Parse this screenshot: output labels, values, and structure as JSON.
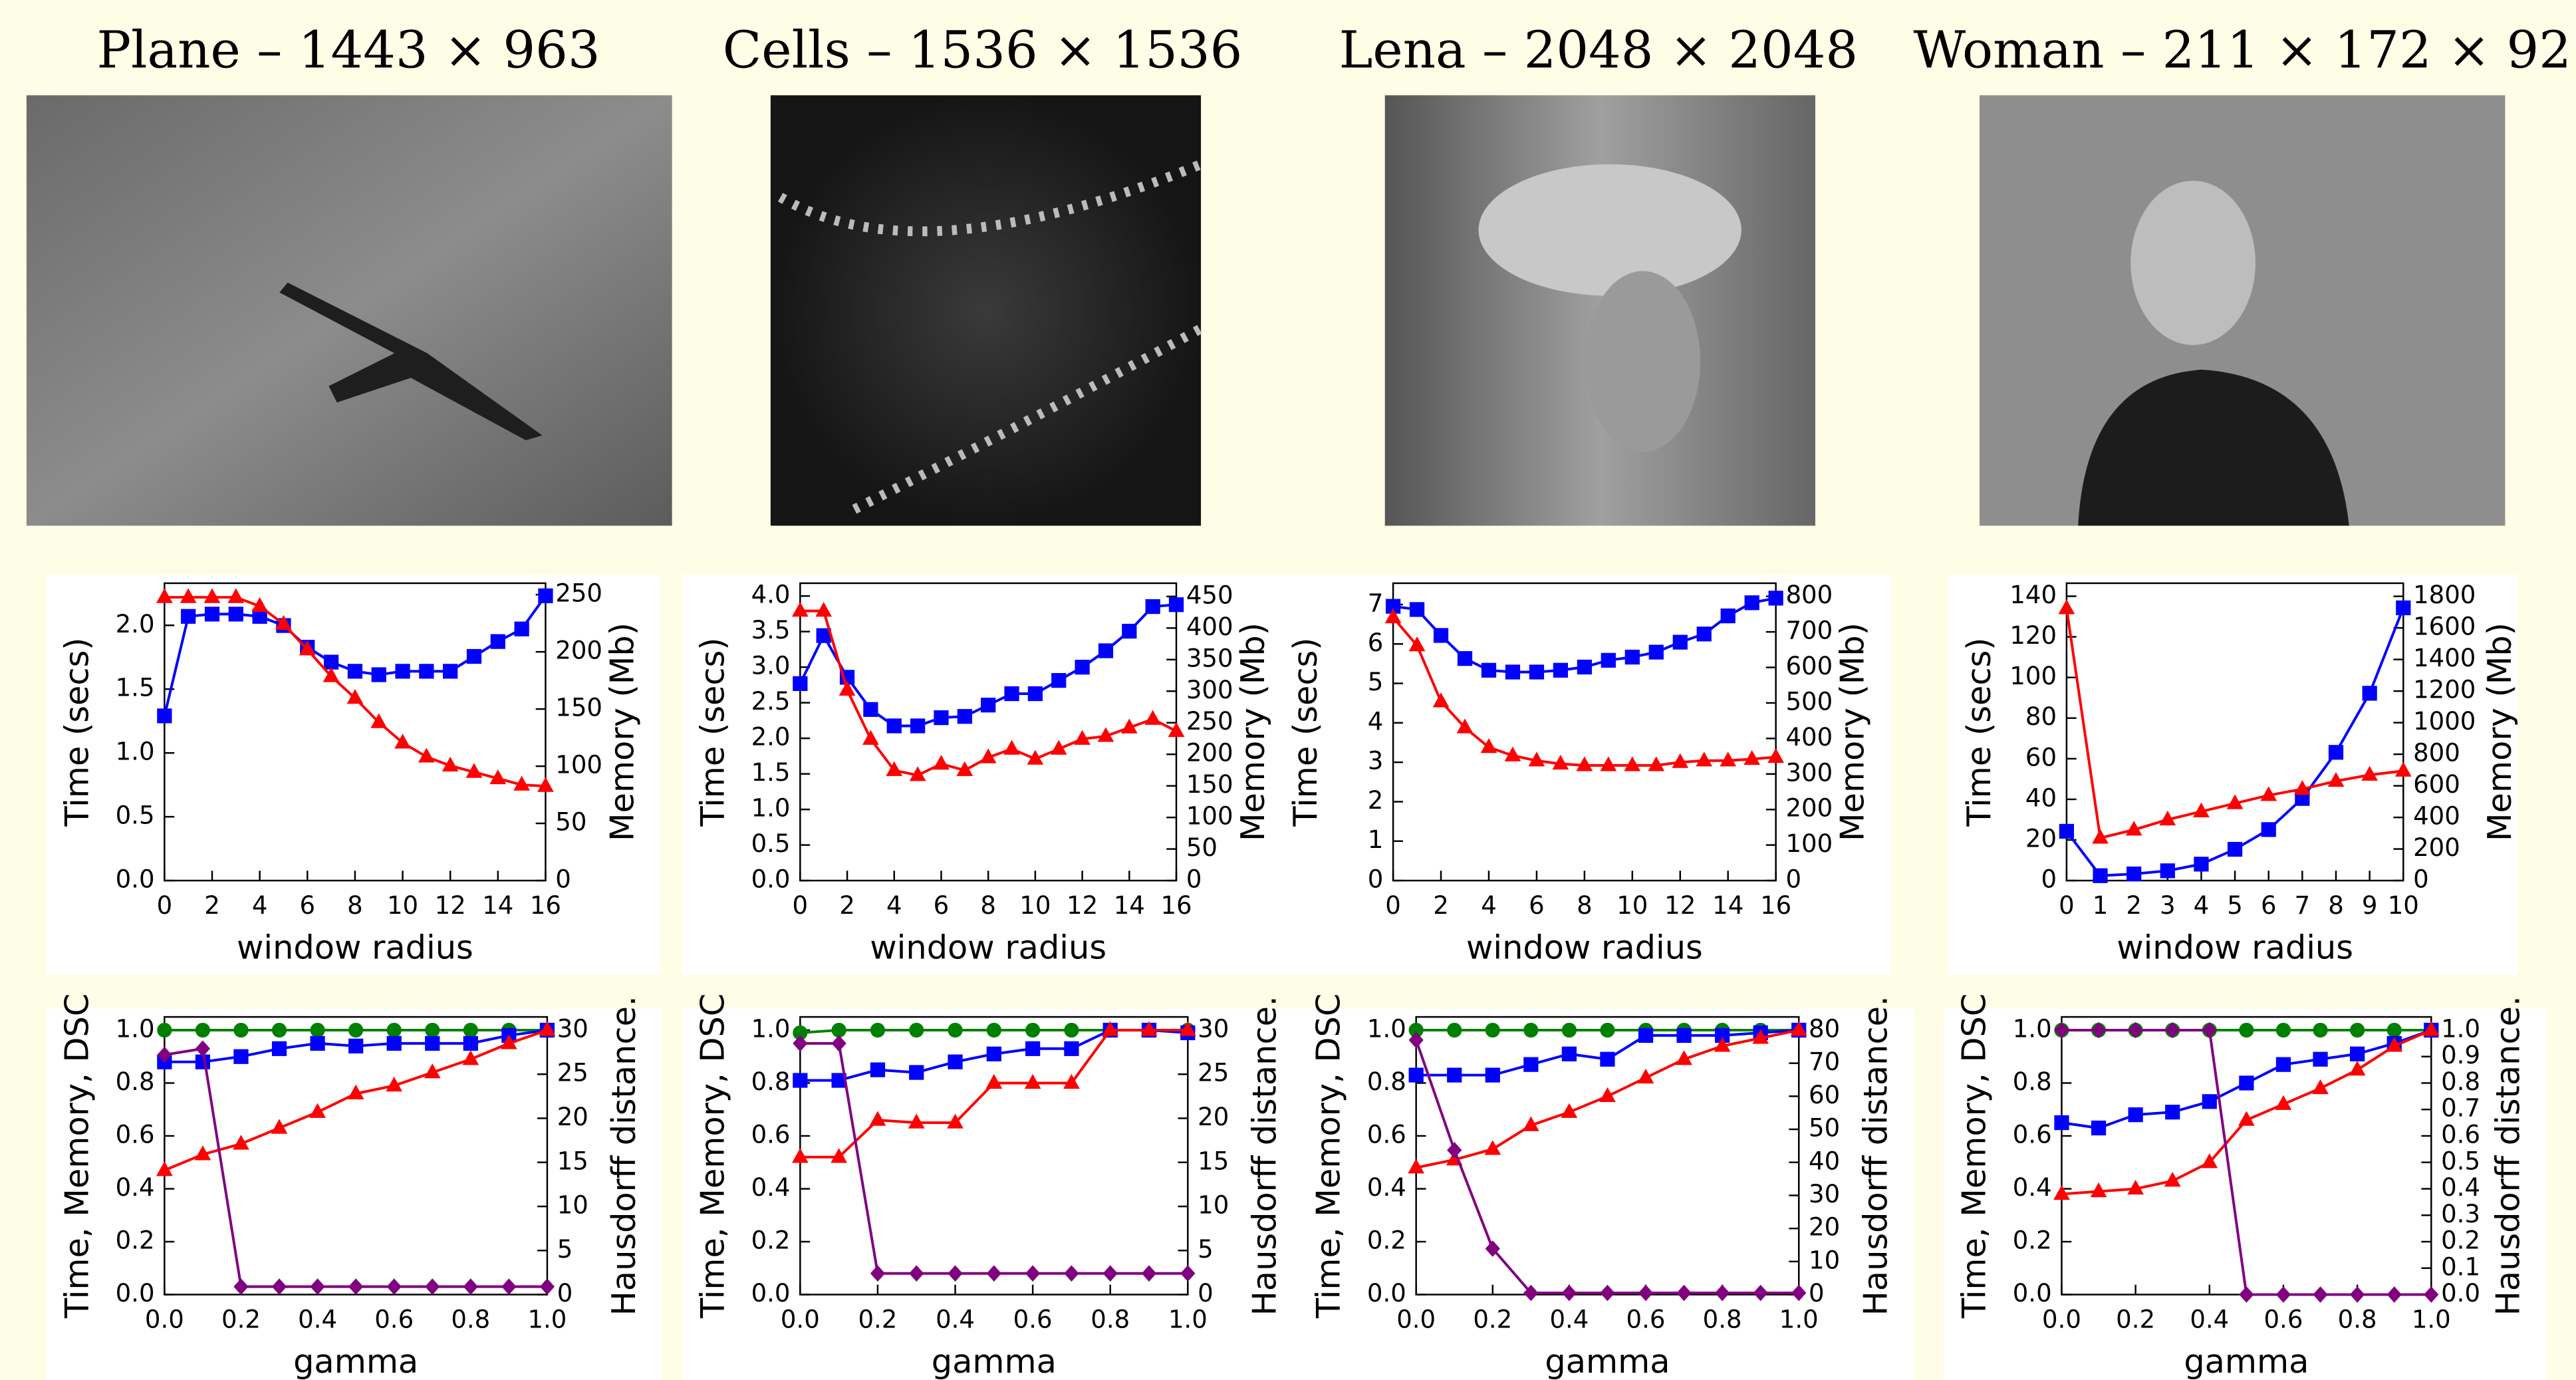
{
  "images": [
    {
      "title": "Plane – 1443 × 963"
    },
    {
      "title": "Cells – 1536 × 1536"
    },
    {
      "title": "Lena – 2048 × 2048"
    },
    {
      "title": "Woman – 211 × 172 × 92"
    }
  ],
  "chart_data": [
    {
      "type": "line",
      "xlabel": "window radius",
      "ylabel": "Time (secs)",
      "y2label": "Memory (Mb)",
      "x": [
        0,
        1,
        2,
        3,
        4,
        5,
        6,
        7,
        8,
        9,
        10,
        11,
        12,
        13,
        14,
        15,
        16
      ],
      "xlim": [
        0,
        16
      ],
      "xticks": [
        0,
        2,
        4,
        6,
        8,
        10,
        12,
        14,
        16
      ],
      "ylim": [
        0,
        2.33
      ],
      "yticks": [
        {
          "value": 0,
          "label": "0.0"
        },
        0.5,
        {
          "value": 1,
          "label": "1.0"
        },
        1.5,
        {
          "value": 2,
          "label": "2.0"
        }
      ],
      "y2lim": [
        0,
        260
      ],
      "y2ticks": [
        0,
        50,
        100,
        150,
        200,
        250
      ],
      "series": [
        {
          "color": "#0000ff",
          "marker": "square",
          "axis": "y2",
          "values": [
            144,
            231,
            233,
            233,
            231,
            223,
            204,
            191,
            183,
            180,
            183,
            183,
            183,
            196,
            209,
            220,
            249
          ]
        },
        {
          "color": "#ff0000",
          "marker": "triangle",
          "values": [
            2.22,
            2.22,
            2.22,
            2.22,
            2.15,
            2.01,
            1.81,
            1.6,
            1.43,
            1.24,
            1.08,
            0.97,
            0.9,
            0.85,
            0.8,
            0.75,
            0.74
          ]
        }
      ]
    },
    {
      "type": "line",
      "xlabel": "window radius",
      "ylabel": "Time (secs)",
      "y2label": "Memory (Mb)",
      "x": [
        0,
        1,
        2,
        3,
        4,
        5,
        6,
        7,
        8,
        9,
        10,
        11,
        12,
        13,
        14,
        15,
        16
      ],
      "xlim": [
        0,
        16
      ],
      "xticks": [
        0,
        2,
        4,
        6,
        8,
        10,
        12,
        14,
        16
      ],
      "ylim": [
        0,
        4.18
      ],
      "yticks": [
        {
          "value": 0,
          "label": "0.0"
        },
        0.5,
        {
          "value": 1,
          "label": "1.0"
        },
        1.5,
        {
          "value": 2,
          "label": "2.0"
        },
        2.5,
        {
          "value": 3,
          "label": "3.0"
        },
        3.5,
        {
          "value": 4,
          "label": "4.0"
        }
      ],
      "y2lim": [
        0,
        471
      ],
      "y2ticks": [
        0,
        50,
        100,
        150,
        200,
        250,
        300,
        350,
        400,
        450
      ],
      "series": [
        {
          "color": "#0000ff",
          "marker": "square",
          "axis": "y2",
          "values": [
            312,
            388,
            322,
            271,
            245,
            245,
            258,
            260,
            278,
            296,
            296,
            317,
            338,
            364,
            395,
            434,
            437
          ]
        },
        {
          "color": "#ff0000",
          "marker": "triangle",
          "values": [
            3.79,
            3.79,
            2.68,
            1.99,
            1.55,
            1.48,
            1.64,
            1.55,
            1.73,
            1.85,
            1.71,
            1.85,
            1.99,
            2.03,
            2.15,
            2.27,
            2.1
          ]
        }
      ]
    },
    {
      "type": "line",
      "xlabel": "window radius",
      "ylabel": "Time (secs)",
      "y2label": "Memory (Mb)",
      "x": [
        0,
        1,
        2,
        3,
        4,
        5,
        6,
        7,
        8,
        9,
        10,
        11,
        12,
        13,
        14,
        15,
        16
      ],
      "xlim": [
        0,
        16
      ],
      "xticks": [
        0,
        2,
        4,
        6,
        8,
        10,
        12,
        14,
        16
      ],
      "ylim": [
        0,
        7.54
      ],
      "yticks": [
        0,
        1,
        2,
        3,
        4,
        5,
        6,
        7
      ],
      "y2lim": [
        0,
        837
      ],
      "y2ticks": [
        0,
        100,
        200,
        300,
        400,
        500,
        600,
        700,
        800
      ],
      "series": [
        {
          "color": "#0000ff",
          "marker": "square",
          "axis": "y2",
          "values": [
            772,
            763,
            690,
            625,
            592,
            587,
            587,
            592,
            601,
            620,
            629,
            643,
            671,
            694,
            745,
            782,
            795
          ]
        },
        {
          "color": "#ff0000",
          "marker": "triangle",
          "values": [
            6.67,
            5.96,
            4.54,
            3.88,
            3.38,
            3.17,
            3.04,
            2.96,
            2.92,
            2.92,
            2.92,
            2.92,
            3.0,
            3.04,
            3.04,
            3.08,
            3.13
          ]
        }
      ]
    },
    {
      "type": "line",
      "xlabel": "window radius",
      "ylabel": "Time (secs)",
      "y2label": "Memory (Mb)",
      "x": [
        0,
        1,
        2,
        3,
        4,
        5,
        6,
        7,
        8,
        9,
        10
      ],
      "xlim": [
        0,
        10
      ],
      "xticks": [
        0,
        1,
        2,
        3,
        4,
        5,
        6,
        7,
        8,
        9,
        10
      ],
      "ylim": [
        0,
        146.4
      ],
      "yticks": [
        0,
        20,
        40,
        60,
        80,
        100,
        120,
        140
      ],
      "y2lim": [
        0,
        1883
      ],
      "y2ticks": [
        0,
        200,
        400,
        600,
        800,
        1000,
        1200,
        1400,
        1600,
        1800
      ],
      "series": [
        {
          "color": "#0000ff",
          "marker": "square",
          "axis": "y2",
          "values": [
            312,
            31,
            42,
            62,
            104,
            198,
            323,
            520,
            812,
            1186,
            1727
          ]
        },
        {
          "color": "#ff0000",
          "marker": "triangle",
          "values": [
            134,
            21,
            25,
            30,
            34,
            38,
            42,
            45,
            49,
            52,
            54
          ]
        }
      ]
    },
    {
      "type": "line",
      "xlabel": "gamma",
      "ylabel": "Time, Memory, DSC",
      "y2label": "Hausdorff distance.",
      "x": [
        0,
        0.1,
        0.2,
        0.3,
        0.4,
        0.5,
        0.6,
        0.7,
        0.8,
        0.9,
        1
      ],
      "xlim": [
        0,
        1
      ],
      "xticks": [
        {
          "value": 0,
          "label": "0.0"
        },
        0.2,
        0.4,
        0.6,
        0.8,
        {
          "value": 1,
          "label": "1.0"
        }
      ],
      "ylim": [
        0,
        1.05
      ],
      "yticks": [
        {
          "value": 0,
          "label": "0.0"
        },
        0.2,
        0.4,
        0.6,
        0.8,
        {
          "value": 1,
          "label": "1.0"
        }
      ],
      "y2lim": [
        0,
        31.5
      ],
      "y2ticks": [
        0,
        5,
        10,
        15,
        20,
        25,
        30
      ],
      "series": [
        {
          "color": "#008000",
          "marker": "circle",
          "values": [
            1,
            1,
            1,
            1,
            1,
            1,
            1,
            1,
            1,
            1,
            1
          ]
        },
        {
          "color": "#0000ff",
          "marker": "square",
          "values": [
            0.88,
            0.88,
            0.9,
            0.93,
            0.95,
            0.94,
            0.95,
            0.95,
            0.95,
            0.98,
            1.0
          ]
        },
        {
          "color": "#ff0000",
          "marker": "triangle",
          "values": [
            0.47,
            0.53,
            0.57,
            0.63,
            0.69,
            0.76,
            0.79,
            0.84,
            0.89,
            0.95,
            1.0
          ]
        },
        {
          "color": "#800080",
          "marker": "diamond",
          "axis": "y2",
          "values": [
            27.2,
            27.9,
            0.9,
            0.9,
            0.9,
            0.9,
            0.9,
            0.9,
            0.9,
            0.9,
            0.9
          ]
        }
      ]
    },
    {
      "type": "line",
      "xlabel": "gamma",
      "ylabel": "Time, Memory, DSC",
      "y2label": "Hausdorff distance.",
      "x": [
        0,
        0.1,
        0.2,
        0.3,
        0.4,
        0.5,
        0.6,
        0.7,
        0.8,
        0.9,
        1
      ],
      "xlim": [
        0,
        1
      ],
      "xticks": [
        {
          "value": 0,
          "label": "0.0"
        },
        0.2,
        0.4,
        0.6,
        0.8,
        {
          "value": 1,
          "label": "1.0"
        }
      ],
      "ylim": [
        0,
        1.05
      ],
      "yticks": [
        {
          "value": 0,
          "label": "0.0"
        },
        0.2,
        0.4,
        0.6,
        0.8,
        {
          "value": 1,
          "label": "1.0"
        }
      ],
      "y2lim": [
        0,
        31.5
      ],
      "y2ticks": [
        0,
        5,
        10,
        15,
        20,
        25,
        30
      ],
      "series": [
        {
          "color": "#008000",
          "marker": "circle",
          "values": [
            0.99,
            1,
            1,
            1,
            1,
            1,
            1,
            1,
            1,
            1,
            1
          ]
        },
        {
          "color": "#0000ff",
          "marker": "square",
          "values": [
            0.81,
            0.81,
            0.85,
            0.84,
            0.88,
            0.91,
            0.93,
            0.93,
            1.0,
            1.0,
            0.99
          ]
        },
        {
          "color": "#ff0000",
          "marker": "triangle",
          "values": [
            0.52,
            0.52,
            0.66,
            0.65,
            0.65,
            0.8,
            0.8,
            0.8,
            1.0,
            1.0,
            1.0
          ]
        },
        {
          "color": "#800080",
          "marker": "diamond",
          "axis": "y2",
          "values": [
            28.5,
            28.5,
            2.4,
            2.4,
            2.4,
            2.4,
            2.4,
            2.4,
            2.4,
            2.4,
            2.4
          ]
        }
      ]
    },
    {
      "type": "line",
      "xlabel": "gamma",
      "ylabel": "Time, Memory, DSC",
      "y2label": "Hausdorff distance.",
      "x": [
        0,
        0.1,
        0.2,
        0.3,
        0.4,
        0.5,
        0.6,
        0.7,
        0.8,
        0.9,
        1
      ],
      "xlim": [
        0,
        1
      ],
      "xticks": [
        {
          "value": 0,
          "label": "0.0"
        },
        0.2,
        0.4,
        0.6,
        0.8,
        {
          "value": 1,
          "label": "1.0"
        }
      ],
      "ylim": [
        0,
        1.05
      ],
      "yticks": [
        {
          "value": 0,
          "label": "0.0"
        },
        0.2,
        0.4,
        0.6,
        0.8,
        {
          "value": 1,
          "label": "1.0"
        }
      ],
      "y2lim": [
        0,
        84
      ],
      "y2ticks": [
        0,
        10,
        20,
        30,
        40,
        50,
        60,
        70,
        80
      ],
      "series": [
        {
          "color": "#008000",
          "marker": "circle",
          "values": [
            1,
            1,
            1,
            1,
            1,
            1,
            1,
            1,
            1,
            1,
            1
          ]
        },
        {
          "color": "#0000ff",
          "marker": "square",
          "values": [
            0.83,
            0.83,
            0.83,
            0.87,
            0.91,
            0.89,
            0.98,
            0.98,
            0.98,
            0.99,
            1.0
          ]
        },
        {
          "color": "#ff0000",
          "marker": "triangle",
          "values": [
            0.48,
            0.51,
            0.55,
            0.64,
            0.69,
            0.75,
            0.82,
            0.89,
            0.94,
            0.97,
            1.0
          ]
        },
        {
          "color": "#800080",
          "marker": "diamond",
          "axis": "y2",
          "values": [
            77,
            43.7,
            13.9,
            0.5,
            0.5,
            0.5,
            0.5,
            0.5,
            0.5,
            0.5,
            0.5
          ]
        }
      ]
    },
    {
      "type": "line",
      "xlabel": "gamma",
      "ylabel": "Time, Memory, DSC",
      "y2label": "Hausdorff distance.",
      "x": [
        0,
        0.1,
        0.2,
        0.3,
        0.4,
        0.5,
        0.6,
        0.7,
        0.8,
        0.9,
        1
      ],
      "xlim": [
        0,
        1
      ],
      "xticks": [
        {
          "value": 0,
          "label": "0.0"
        },
        0.2,
        0.4,
        0.6,
        0.8,
        {
          "value": 1,
          "label": "1.0"
        }
      ],
      "ylim": [
        0,
        1.05
      ],
      "yticks": [
        {
          "value": 0,
          "label": "0.0"
        },
        0.2,
        0.4,
        0.6,
        0.8,
        {
          "value": 1,
          "label": "1.0"
        }
      ],
      "y2lim": [
        0,
        1.05
      ],
      "y2ticks": [
        {
          "value": 0,
          "label": "0.0"
        },
        0.1,
        0.2,
        0.3,
        0.4,
        0.5,
        0.6,
        0.7,
        0.8,
        0.9,
        {
          "value": 1,
          "label": "1.0"
        }
      ],
      "series": [
        {
          "color": "#008000",
          "marker": "circle",
          "values": [
            1,
            1,
            1,
            1,
            1,
            1,
            1,
            1,
            1,
            1,
            1
          ]
        },
        {
          "color": "#0000ff",
          "marker": "square",
          "values": [
            0.65,
            0.63,
            0.68,
            0.69,
            0.73,
            0.8,
            0.87,
            0.89,
            0.91,
            0.95,
            1.0
          ]
        },
        {
          "color": "#ff0000",
          "marker": "triangle",
          "values": [
            0.38,
            0.39,
            0.4,
            0.43,
            0.5,
            0.66,
            0.72,
            0.78,
            0.85,
            0.94,
            1.0
          ]
        },
        {
          "color": "#800080",
          "marker": "diamond",
          "axis": "y2",
          "values": [
            1,
            1,
            1,
            1,
            1,
            0,
            0,
            0,
            0,
            0,
            0
          ]
        }
      ]
    }
  ]
}
